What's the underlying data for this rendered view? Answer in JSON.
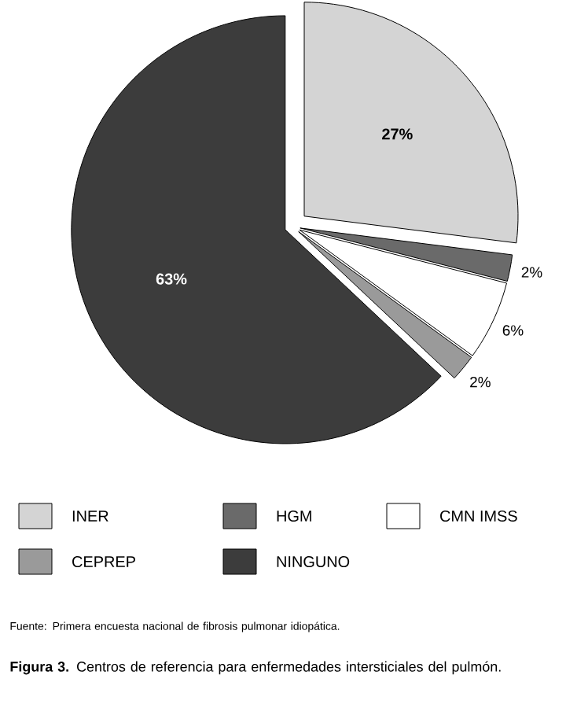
{
  "chart_data": {
    "type": "pie",
    "categories": [
      "INER",
      "HGM",
      "CMN IMSS",
      "CEPREP",
      "NINGUNO"
    ],
    "values": [
      27,
      2,
      6,
      2,
      63
    ],
    "colors": [
      "#d4d4d4",
      "#6a6a6a",
      "#ffffff",
      "#9a9a9a",
      "#3c3c3c"
    ],
    "value_labels": [
      "27%",
      "2%",
      "6%",
      "2%",
      "63%"
    ],
    "legend": "bottom",
    "annotations": [
      "Fuente: Primera encuesta nacional de fibrosis pulmonar idiopática.",
      "**Figura 3.** Centros de referencia para enfermedades intersticiales del pulmón."
    ]
  }
}
